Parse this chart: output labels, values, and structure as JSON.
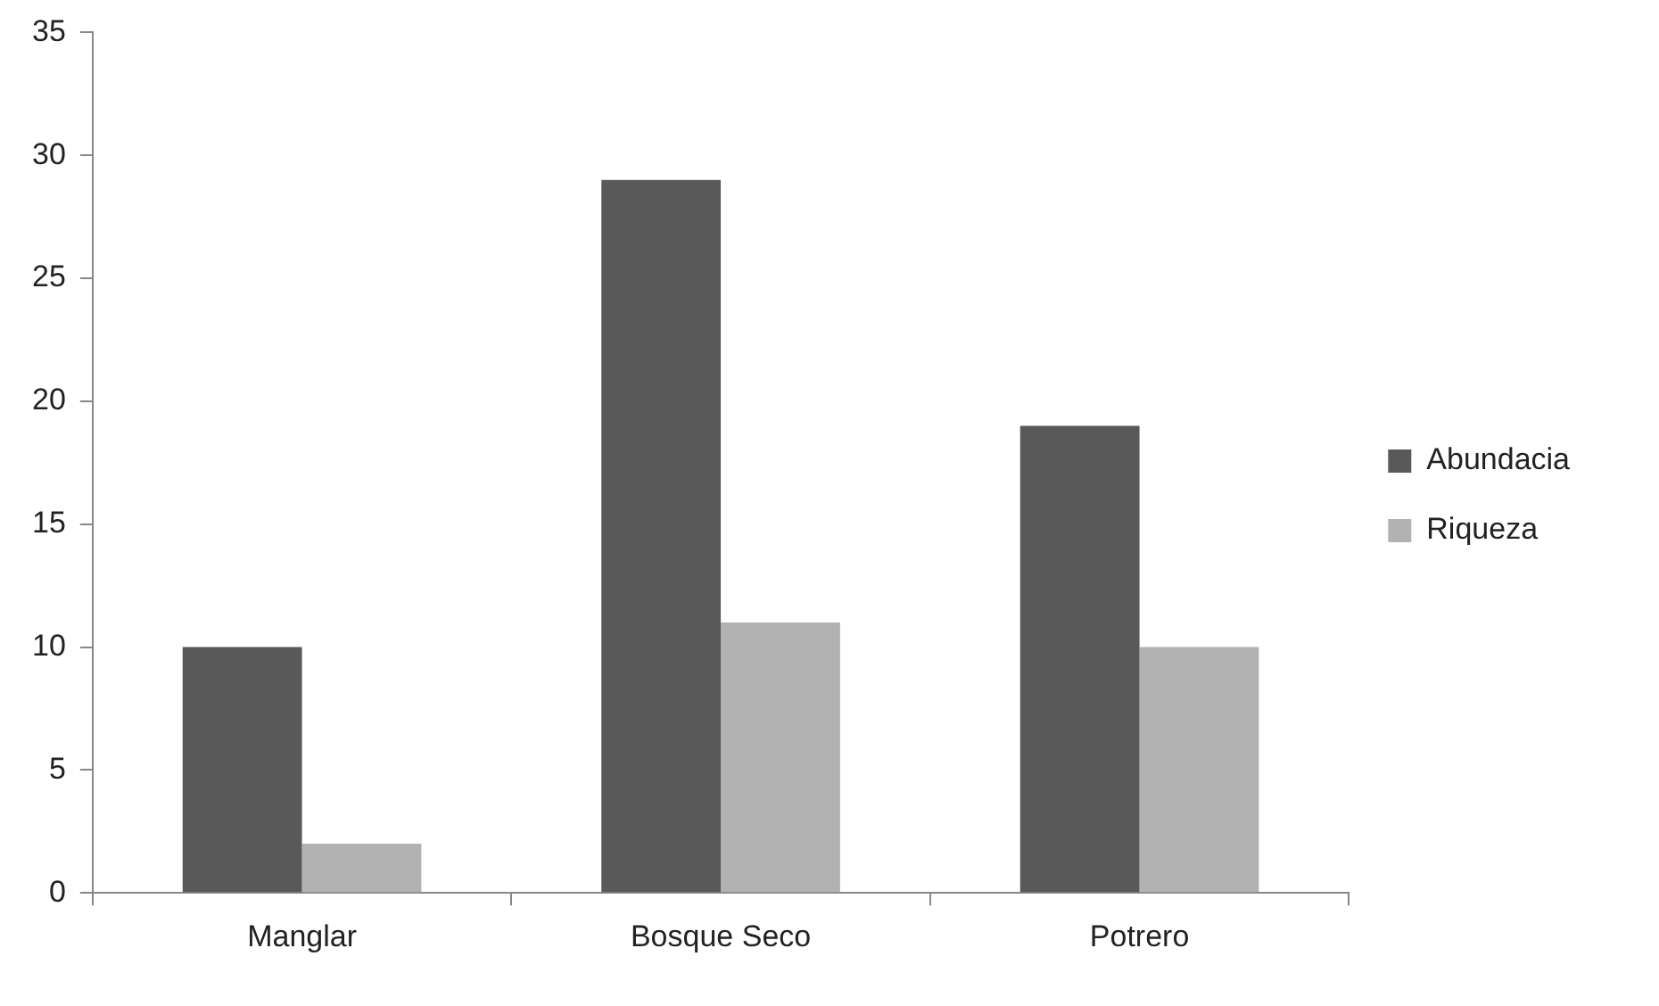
{
  "chart_data": {
    "type": "bar",
    "categories": [
      "Manglar",
      "Bosque Seco",
      "Potrero"
    ],
    "series": [
      {
        "name": "Abundacia",
        "color": "#595959",
        "values": [
          10,
          29,
          19
        ]
      },
      {
        "name": "Riqueza",
        "color": "#b2b2b2",
        "values": [
          2,
          11,
          10
        ]
      }
    ],
    "ylim": [
      0,
      35
    ],
    "yticks": [
      0,
      5,
      10,
      15,
      20,
      25,
      30,
      35
    ],
    "grid": false,
    "legend": "right"
  }
}
